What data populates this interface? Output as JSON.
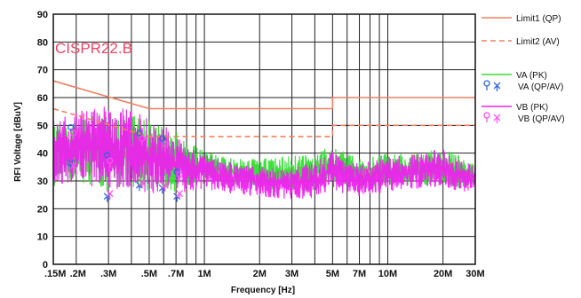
{
  "colors": {
    "limit": "#f08060",
    "va": "#33dd33",
    "vb": "#ee22ee",
    "va_marker": "#3366dd",
    "vb_marker": "#ff55ee",
    "std_label": "#ee4466",
    "grid": "#222222"
  },
  "chart_data": {
    "type": "line",
    "standard_label": "CISPR22.B",
    "xlabel": "Frequency [Hz]",
    "ylabel": "RFI Voltage [dBuV]",
    "x_scale": "log",
    "xlim": [
      0.15,
      30
    ],
    "ylim": [
      0,
      90
    ],
    "grid": true,
    "legend_position": "right",
    "y_ticks": [
      0,
      10,
      20,
      30,
      40,
      50,
      60,
      70,
      80,
      90
    ],
    "x_ticks": [
      {
        "value": 0.15,
        "label": ".15M"
      },
      {
        "value": 0.2,
        "label": ".2M"
      },
      {
        "value": 0.3,
        "label": ".3M"
      },
      {
        "value": 0.5,
        "label": ".5M"
      },
      {
        "value": 0.7,
        "label": ".7M"
      },
      {
        "value": 1,
        "label": "1M"
      },
      {
        "value": 2,
        "label": "2M"
      },
      {
        "value": 3,
        "label": "3M"
      },
      {
        "value": 5,
        "label": "5M"
      },
      {
        "value": 7,
        "label": "7M"
      },
      {
        "value": 10,
        "label": "10M"
      },
      {
        "value": 20,
        "label": "20M"
      },
      {
        "value": 30,
        "label": "30M"
      }
    ],
    "limits": [
      {
        "name": "Limit1 (QP)",
        "style": "solid",
        "points": [
          [
            0.15,
            66
          ],
          [
            0.5,
            56
          ],
          [
            5,
            56
          ],
          [
            5,
            60
          ],
          [
            30,
            60
          ]
        ]
      },
      {
        "name": "Limit2 (AV)",
        "style": "dashed",
        "points": [
          [
            0.15,
            56
          ],
          [
            0.5,
            46
          ],
          [
            5,
            46
          ],
          [
            5,
            50
          ],
          [
            30,
            50
          ]
        ]
      }
    ],
    "series": [
      {
        "name": "VA (PK)",
        "color_key": "va",
        "envelope": [
          [
            0.15,
            28,
            50
          ],
          [
            0.2,
            30,
            52
          ],
          [
            0.3,
            26,
            55
          ],
          [
            0.4,
            28,
            54
          ],
          [
            0.5,
            26,
            52
          ],
          [
            0.6,
            27,
            50
          ],
          [
            0.7,
            26,
            48
          ],
          [
            0.8,
            28,
            44
          ],
          [
            1,
            30,
            42
          ],
          [
            1.5,
            28,
            38
          ],
          [
            2,
            27,
            38
          ],
          [
            3,
            26,
            39
          ],
          [
            4,
            27,
            40
          ],
          [
            5,
            30,
            43
          ],
          [
            6,
            28,
            40
          ],
          [
            7,
            27,
            38
          ],
          [
            10,
            28,
            40
          ],
          [
            15,
            28,
            40
          ],
          [
            20,
            29,
            42
          ],
          [
            25,
            27,
            39
          ],
          [
            30,
            28,
            36
          ]
        ]
      },
      {
        "name": "VB (PK)",
        "color_key": "vb",
        "envelope": [
          [
            0.15,
            28,
            52
          ],
          [
            0.2,
            30,
            55
          ],
          [
            0.3,
            26,
            57
          ],
          [
            0.4,
            27,
            56
          ],
          [
            0.5,
            25,
            52
          ],
          [
            0.6,
            26,
            50
          ],
          [
            0.7,
            25,
            47
          ],
          [
            0.8,
            26,
            42
          ],
          [
            1,
            27,
            40
          ],
          [
            1.5,
            25,
            36
          ],
          [
            2,
            24,
            35
          ],
          [
            3,
            23,
            35
          ],
          [
            4,
            24,
            37
          ],
          [
            5,
            27,
            41
          ],
          [
            6,
            25,
            38
          ],
          [
            7,
            24,
            36
          ],
          [
            10,
            26,
            39
          ],
          [
            15,
            27,
            40
          ],
          [
            20,
            28,
            42
          ],
          [
            25,
            26,
            38
          ],
          [
            30,
            27,
            36
          ]
        ]
      }
    ],
    "markers": [
      {
        "name": "VA (QP/AV)",
        "color_key": "va_marker",
        "points": [
          [
            0.19,
            48,
            36
          ],
          [
            0.3,
            38,
            24
          ],
          [
            0.45,
            46,
            28
          ],
          [
            0.6,
            44,
            27
          ],
          [
            0.72,
            32,
            24
          ]
        ]
      },
      {
        "name": "VB (QP/AV)",
        "color_key": "vb_marker",
        "points": [
          [
            0.19,
            46,
            35
          ],
          [
            0.3,
            36,
            25
          ],
          [
            0.45,
            44,
            29
          ],
          [
            0.6,
            42,
            28
          ],
          [
            0.72,
            31,
            25
          ]
        ]
      }
    ],
    "legend": [
      {
        "label": "Limit1 (QP)",
        "kind": "line-solid",
        "color_key": "limit"
      },
      {
        "label": "Limit2 (AV)",
        "kind": "line-dashed",
        "color_key": "limit"
      },
      {
        "label": "VA (PK)",
        "kind": "line-solid",
        "color_key": "va"
      },
      {
        "label": "VA (QP/AV)",
        "kind": "markers",
        "color_key": "va_marker"
      },
      {
        "label": "VB (PK)",
        "kind": "line-solid",
        "color_key": "vb"
      },
      {
        "label": "VB (QP/AV)",
        "kind": "markers",
        "color_key": "vb_marker"
      }
    ]
  }
}
